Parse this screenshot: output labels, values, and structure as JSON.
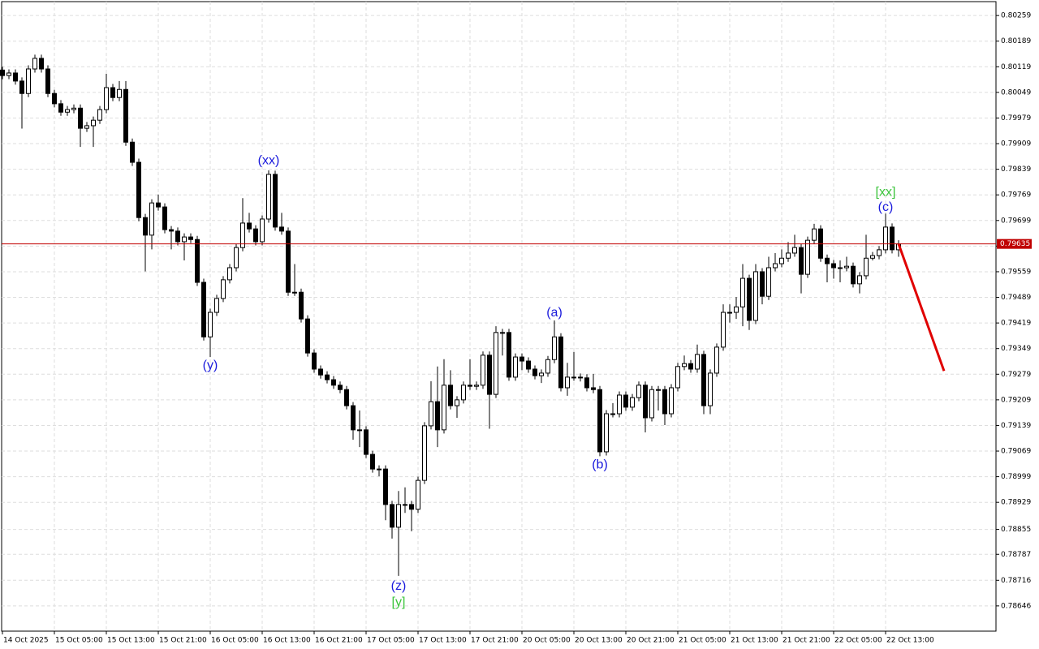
{
  "chart_data": {
    "type": "candlestick",
    "up_color": "#ffffff",
    "down_color": "#000000",
    "outline_color": "#000000",
    "grid": true,
    "xlim": [
      -0.125,
      153
    ],
    "ylim": [
      0.78577,
      0.80297
    ],
    "yticks": [
      0.80259,
      0.80189,
      0.80119,
      0.80049,
      0.79979,
      0.79909,
      0.79839,
      0.79769,
      0.79699,
      0.79629,
      0.79559,
      0.79489,
      0.79419,
      0.79349,
      0.79279,
      0.79209,
      0.79139,
      0.79069,
      0.78999,
      0.78929,
      0.78855,
      0.78787,
      0.78716,
      0.78646
    ],
    "xticks": [
      {
        "value": 0,
        "label": "14 Oct 2025"
      },
      {
        "value": 8,
        "label": "15 Oct 05:00"
      },
      {
        "value": 16,
        "label": "15 Oct 13:00"
      },
      {
        "value": 24,
        "label": "15 Oct 21:00"
      },
      {
        "value": 32,
        "label": "16 Oct 05:00"
      },
      {
        "value": 40,
        "label": "16 Oct 13:00"
      },
      {
        "value": 48,
        "label": "16 Oct 21:00"
      },
      {
        "value": 56,
        "label": "17 Oct 05:00"
      },
      {
        "value": 64,
        "label": "17 Oct 13:00"
      },
      {
        "value": 72,
        "label": "17 Oct 21:00"
      },
      {
        "value": 80,
        "label": "20 Oct 05:00"
      },
      {
        "value": 88,
        "label": "20 Oct 13:00"
      },
      {
        "value": 96,
        "label": "20 Oct 21:00"
      },
      {
        "value": 104,
        "label": "21 Oct 05:00"
      },
      {
        "value": 112,
        "label": "21 Oct 13:00"
      },
      {
        "value": 120,
        "label": "21 Oct 21:00"
      },
      {
        "value": 128,
        "label": "22 Oct 05:00"
      },
      {
        "value": 136,
        "label": "22 Oct 13:00"
      }
    ],
    "open": [
      0.8011,
      0.80095,
      0.80102,
      0.8008,
      0.80046,
      0.80113,
      0.80142,
      0.80113,
      0.80046,
      0.80018,
      0.79995,
      0.80002,
      0.80006,
      0.79951,
      0.79958,
      0.79973,
      0.80002,
      0.80062,
      0.80035,
      0.80057,
      0.79913,
      0.79858,
      0.79707,
      0.79659,
      0.79747,
      0.79736,
      0.79674,
      0.7967,
      0.79641,
      0.79654,
      0.79647,
      0.7953,
      0.79381,
      0.79448,
      0.79486,
      0.79537,
      0.7957,
      0.79625,
      0.79692,
      0.79676,
      0.79641,
      0.79703,
      0.79825,
      0.79681,
      0.7967,
      0.79503,
      0.79503,
      0.7943,
      0.79337,
      0.79293,
      0.79277,
      0.79264,
      0.79249,
      0.79237,
      0.79193,
      0.79127,
      0.79127,
      0.7906,
      0.7902,
      0.7902,
      0.78923,
      0.78861,
      0.78923,
      0.78923,
      0.7891,
      0.78989,
      0.79138,
      0.79204,
      0.79127,
      0.79249,
      0.79193,
      0.79209,
      0.79249,
      0.79246,
      0.79249,
      0.79331,
      0.79224,
      0.79393,
      0.79393,
      0.79271,
      0.79326,
      0.79315,
      0.79293,
      0.79275,
      0.79282,
      0.79319,
      0.79381,
      0.79242,
      0.79271,
      0.79271,
      0.79269,
      0.79242,
      0.79237,
      0.79067,
      0.79171,
      0.79171,
      0.79222,
      0.79189,
      0.79215,
      0.79249,
      0.7916,
      0.79237,
      0.79237,
      0.79171,
      0.79242,
      0.793,
      0.79308,
      0.79293,
      0.79333,
      0.79193,
      0.79282,
      0.79353,
      0.79448,
      0.79448,
      0.79463,
      0.79541,
      0.79426,
      0.79559,
      0.79492,
      0.7957,
      0.79581,
      0.79596,
      0.7961,
      0.79625,
      0.79552,
      0.79645,
      0.79676,
      0.79596,
      0.79581,
      0.7957,
      0.7957,
      0.79574,
      0.79526,
      0.79548,
      0.79596,
      0.79603,
      0.79619,
      0.79681,
      0.79619
    ],
    "high": [
      0.8012,
      0.80112,
      0.80112,
      0.8009,
      0.80123,
      0.80152,
      0.80152,
      0.80123,
      0.80056,
      0.80028,
      0.80012,
      0.80016,
      0.80016,
      0.79968,
      0.79983,
      0.80012,
      0.801,
      0.80072,
      0.8008,
      0.8008,
      0.79923,
      0.79868,
      0.79717,
      0.79757,
      0.7977,
      0.79746,
      0.79684,
      0.7968,
      0.79664,
      0.79664,
      0.79657,
      0.7954,
      0.79458,
      0.79496,
      0.79547,
      0.7958,
      0.79635,
      0.7976,
      0.7972,
      0.79686,
      0.79713,
      0.79836,
      0.79835,
      0.7972,
      0.7968,
      0.7958,
      0.79513,
      0.7944,
      0.79347,
      0.79303,
      0.79287,
      0.79274,
      0.79259,
      0.79247,
      0.79203,
      0.7918,
      0.79137,
      0.7907,
      0.7903,
      0.7903,
      0.78933,
      0.7896,
      0.7897,
      0.78933,
      0.78999,
      0.79148,
      0.7926,
      0.793,
      0.7932,
      0.7929,
      0.79219,
      0.79259,
      0.7932,
      0.79259,
      0.79341,
      0.79341,
      0.7941,
      0.79403,
      0.79403,
      0.79336,
      0.79336,
      0.79325,
      0.79303,
      0.79292,
      0.79329,
      0.79426,
      0.79391,
      0.7931,
      0.7934,
      0.79281,
      0.79279,
      0.7928,
      0.79247,
      0.79181,
      0.792,
      0.79232,
      0.79232,
      0.79225,
      0.79259,
      0.79259,
      0.79247,
      0.79247,
      0.79247,
      0.79252,
      0.7931,
      0.7933,
      0.79318,
      0.7936,
      0.79343,
      0.79292,
      0.79363,
      0.7947,
      0.7947,
      0.7949,
      0.7958,
      0.79551,
      0.7958,
      0.79569,
      0.796,
      0.7961,
      0.7962,
      0.7964,
      0.7966,
      0.79635,
      0.79655,
      0.7969,
      0.79686,
      0.79606,
      0.79591,
      0.7959,
      0.796,
      0.79584,
      0.79558,
      0.7966,
      0.79613,
      0.79629,
      0.79718,
      0.79691,
      0.79645
    ],
    "low": [
      0.80085,
      0.80085,
      0.8007,
      0.7995,
      0.80036,
      0.80103,
      0.80103,
      0.80036,
      0.80008,
      0.79985,
      0.79985,
      0.79992,
      0.799,
      0.79941,
      0.799,
      0.79963,
      0.79992,
      0.80025,
      0.80025,
      0.79903,
      0.79848,
      0.79697,
      0.7956,
      0.7962,
      0.79726,
      0.79664,
      0.7962,
      0.79631,
      0.7959,
      0.79637,
      0.7952,
      0.79371,
      0.79326,
      0.79438,
      0.79476,
      0.79527,
      0.7956,
      0.79615,
      0.79666,
      0.79631,
      0.79631,
      0.79693,
      0.79671,
      0.7966,
      0.79493,
      0.79493,
      0.7942,
      0.79327,
      0.79283,
      0.79267,
      0.79254,
      0.79239,
      0.79227,
      0.79183,
      0.791,
      0.7908,
      0.7905,
      0.7901,
      0.79,
      0.7888,
      0.7883,
      0.78728,
      0.789,
      0.7885,
      0.789,
      0.78979,
      0.79128,
      0.7908,
      0.79117,
      0.79183,
      0.7916,
      0.79199,
      0.79236,
      0.79236,
      0.79239,
      0.7913,
      0.79214,
      0.7933,
      0.79261,
      0.79261,
      0.7929,
      0.79283,
      0.79265,
      0.79255,
      0.79272,
      0.79309,
      0.79232,
      0.7922,
      0.79261,
      0.79259,
      0.79232,
      0.79227,
      0.79055,
      0.79057,
      0.79161,
      0.79161,
      0.79179,
      0.79179,
      0.79205,
      0.7912,
      0.7915,
      0.7918,
      0.7914,
      0.79161,
      0.79232,
      0.7929,
      0.79283,
      0.79283,
      0.7917,
      0.7917,
      0.79272,
      0.79343,
      0.7942,
      0.7943,
      0.7941,
      0.794,
      0.79416,
      0.7947,
      0.79482,
      0.7956,
      0.79571,
      0.79586,
      0.796,
      0.795,
      0.79542,
      0.79635,
      0.79586,
      0.7953,
      0.7954,
      0.7953,
      0.7956,
      0.79516,
      0.795,
      0.79538,
      0.7959,
      0.79593,
      0.79609,
      0.79609,
      0.796
    ],
    "close": [
      0.80095,
      0.80102,
      0.8008,
      0.80046,
      0.80113,
      0.80142,
      0.80113,
      0.80046,
      0.80018,
      0.79995,
      0.80002,
      0.80006,
      0.79951,
      0.79958,
      0.79973,
      0.80002,
      0.80062,
      0.80035,
      0.80057,
      0.79913,
      0.79858,
      0.79707,
      0.79659,
      0.79747,
      0.79736,
      0.79674,
      0.7967,
      0.79641,
      0.79654,
      0.79647,
      0.7953,
      0.79381,
      0.79448,
      0.79486,
      0.79537,
      0.7957,
      0.79625,
      0.79692,
      0.79676,
      0.79641,
      0.79703,
      0.79825,
      0.79681,
      0.7967,
      0.79503,
      0.79503,
      0.7943,
      0.79337,
      0.79293,
      0.79277,
      0.79264,
      0.79249,
      0.79237,
      0.79193,
      0.79127,
      0.79127,
      0.7906,
      0.7902,
      0.7902,
      0.78923,
      0.78861,
      0.78923,
      0.78923,
      0.7891,
      0.78989,
      0.79138,
      0.79204,
      0.79127,
      0.79249,
      0.79193,
      0.79209,
      0.79249,
      0.79246,
      0.79249,
      0.79331,
      0.79224,
      0.79393,
      0.79393,
      0.79271,
      0.79326,
      0.79315,
      0.79293,
      0.79275,
      0.79282,
      0.79319,
      0.79381,
      0.79242,
      0.79271,
      0.79271,
      0.79269,
      0.79242,
      0.79237,
      0.79067,
      0.79171,
      0.79171,
      0.79222,
      0.79189,
      0.79215,
      0.79249,
      0.7916,
      0.79237,
      0.79237,
      0.79171,
      0.79242,
      0.793,
      0.79308,
      0.79293,
      0.79333,
      0.79193,
      0.79282,
      0.79353,
      0.79448,
      0.79448,
      0.79463,
      0.79541,
      0.79426,
      0.79559,
      0.79492,
      0.7957,
      0.79581,
      0.79596,
      0.7961,
      0.79625,
      0.79552,
      0.79645,
      0.79676,
      0.79596,
      0.79581,
      0.7957,
      0.7957,
      0.79574,
      0.79526,
      0.79548,
      0.79596,
      0.79603,
      0.79619,
      0.79681,
      0.79619,
      0.79635
    ],
    "price_line": {
      "value": 0.79635,
      "color": "#c00000"
    },
    "forecast": {
      "color": "#e00000",
      "x": [
        138,
        145
      ],
      "y": [
        0.79635,
        0.79288
      ]
    },
    "annotations": [
      {
        "text": "(xx)",
        "color": "#1a1adc",
        "x": 41,
        "y": 0.79862
      },
      {
        "text": "(y)",
        "color": "#1a1adc",
        "x": 32,
        "y": 0.79302
      },
      {
        "text": "(z)",
        "color": "#1a1adc",
        "x": 61,
        "y": 0.78699
      },
      {
        "text": "[y]",
        "color": "#3cc43c",
        "x": 61,
        "y": 0.78655
      },
      {
        "text": "(a)",
        "color": "#1a1adc",
        "x": 85,
        "y": 0.79446
      },
      {
        "text": "(b)",
        "color": "#1a1adc",
        "x": 92,
        "y": 0.79031
      },
      {
        "text": "[xx]",
        "color": "#3cc43c",
        "x": 136,
        "y": 0.79776
      },
      {
        "text": "(c)",
        "color": "#1a1adc",
        "x": 136,
        "y": 0.79734
      }
    ]
  }
}
